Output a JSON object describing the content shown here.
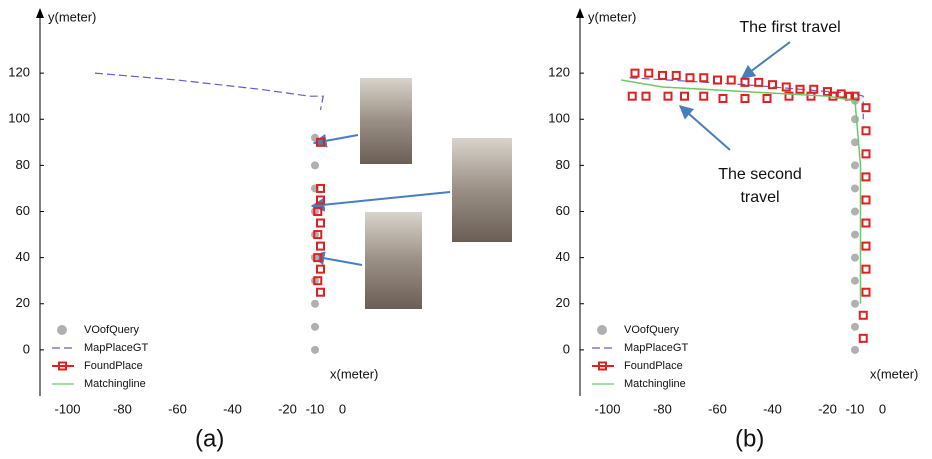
{
  "chart_data": [
    {
      "type": "line",
      "x_label": "x(meter)",
      "y_label": "y(meter)",
      "panel_label": "(a)",
      "xlim": [
        -110,
        10
      ],
      "ylim": [
        -20,
        140
      ],
      "xticks": [
        -100,
        -80,
        -60,
        -40,
        -20,
        -10,
        0
      ],
      "yticks": [
        0,
        20,
        40,
        60,
        80,
        100,
        120
      ],
      "series": [
        {
          "name": "VOofQuery",
          "color": "#b0b0b0",
          "style": "points",
          "x": [
            -10,
            -10,
            -10,
            -10,
            -10,
            -10,
            -10,
            -10,
            -10,
            -10
          ],
          "values": [
            0,
            10,
            20,
            30,
            40,
            50,
            60,
            70,
            80,
            92
          ]
        },
        {
          "name": "MapPlaceGT",
          "color": "#6a5acd",
          "style": "dashed",
          "x": [
            -90,
            -60,
            -30,
            -12,
            -7,
            -8
          ],
          "values": [
            120,
            117,
            113,
            110,
            110,
            104
          ]
        },
        {
          "name": "FoundPlace",
          "color": "#e02020",
          "style": "squares",
          "x": [
            -8,
            -8,
            -8,
            -9,
            -8,
            -9,
            -8,
            -9,
            -8,
            -9,
            -8
          ],
          "values": [
            90,
            70,
            65,
            60,
            55,
            50,
            45,
            40,
            35,
            30,
            25
          ]
        },
        {
          "name": "Matchingline",
          "color": "#66cc66",
          "style": "line",
          "x": [],
          "values": []
        }
      ]
    },
    {
      "type": "line",
      "x_label": "x(meter)",
      "y_label": "y(meter)",
      "panel_label": "(b)",
      "xlim": [
        -110,
        10
      ],
      "ylim": [
        -20,
        140
      ],
      "xticks": [
        -100,
        -80,
        -60,
        -40,
        -20,
        -10,
        0
      ],
      "yticks": [
        0,
        20,
        40,
        60,
        80,
        100,
        120
      ],
      "annotations": [
        {
          "text": [
            "The first travel"
          ]
        },
        {
          "text": [
            "The second",
            "travel"
          ]
        }
      ],
      "series": [
        {
          "name": "VOofQuery",
          "color": "#b0b0b0",
          "style": "points",
          "x": [
            -10,
            -10,
            -10,
            -10,
            -10,
            -10,
            -10,
            -10,
            -10,
            -10,
            -10,
            -10
          ],
          "values": [
            0,
            10,
            20,
            30,
            40,
            50,
            60,
            70,
            80,
            90,
            100,
            108
          ]
        },
        {
          "name": "MapPlaceGT",
          "color": "#6a5acd",
          "style": "dashed",
          "x": [
            -92,
            -50,
            -10,
            -7,
            -7
          ],
          "values": [
            118,
            115,
            111,
            110,
            100
          ]
        },
        {
          "name": "FoundPlace",
          "color": "#e02020",
          "style": "squares",
          "x": [
            -90,
            -85,
            -80,
            -75,
            -70,
            -65,
            -60,
            -55,
            -50,
            -45,
            -40,
            -35,
            -30,
            -25,
            -20,
            -15,
            -10,
            -6,
            -6,
            -6,
            -6,
            -6,
            -6,
            -6,
            -6,
            -6,
            -7,
            -7,
            -91,
            -86,
            -78,
            -72,
            -65,
            -58,
            -50,
            -42,
            -34,
            -26,
            -18,
            -12
          ],
          "values": [
            120,
            120,
            119,
            119,
            118,
            118,
            117,
            117,
            116,
            116,
            115,
            114,
            113,
            113,
            112,
            111,
            110,
            105,
            95,
            85,
            75,
            65,
            55,
            45,
            35,
            25,
            15,
            5,
            110,
            110,
            110,
            110,
            110,
            109,
            109,
            109,
            110,
            110,
            110,
            110
          ]
        },
        {
          "name": "Matchingline",
          "color": "#66cc66",
          "style": "line",
          "x": [
            -95,
            -80,
            -65,
            -50,
            -35,
            -20,
            -10,
            -8,
            -8,
            -8
          ],
          "values": [
            117,
            114,
            113,
            112,
            111,
            110,
            108,
            80,
            50,
            20
          ]
        }
      ]
    }
  ]
}
